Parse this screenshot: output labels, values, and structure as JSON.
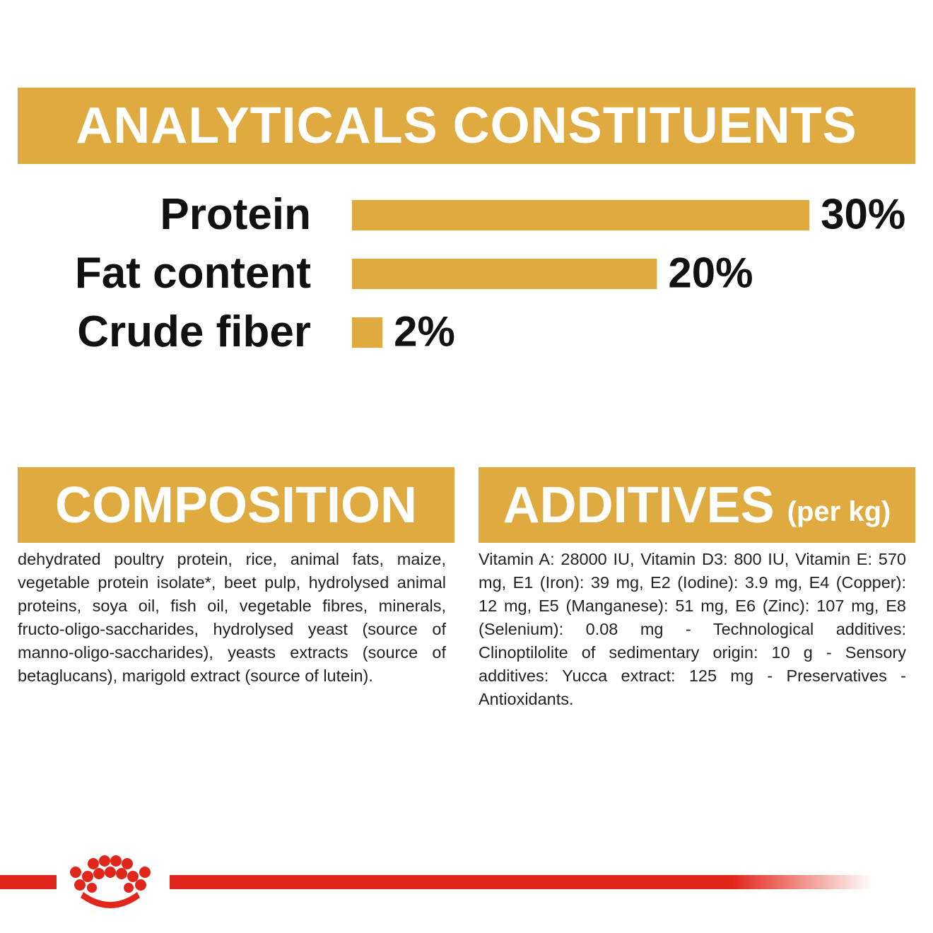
{
  "chart_data": {
    "type": "bar",
    "orientation": "horizontal",
    "title": "ANALYTICALS CONSTITUENTS",
    "categories": [
      "Protein",
      "Fat content",
      "Crude fiber"
    ],
    "values": [
      30,
      20,
      2
    ],
    "value_labels": [
      "30%",
      "20%",
      "2%"
    ],
    "color": "#dfab41"
  },
  "composition": {
    "title": "COMPOSITION",
    "text": "dehydrated poultry protein, rice, animal fats, maize, vegetable protein isolate*, beet pulp, hydrolysed animal proteins, soya oil, fish oil, vegetable fibres, minerals, fructo-oligo-saccharides, hydrolysed yeast (source of manno-oligo-saccharides), yeasts extracts (source of betaglucans), marigold extract (source of lutein)."
  },
  "additives": {
    "title": "ADDITIVES",
    "unit": "(per kg)",
    "text": "Vitamin A: 28000 IU, Vitamin D3: 800 IU, Vitamin E: 570 mg, E1 (Iron): 39 mg, E2 (Iodine): 3.9 mg, E4 (Copper): 12 mg, E5 (Manganese): 51 mg, E6 (Zinc): 107 mg, E8 (Selenium): 0.08 mg - Technological additives: Clinoptilolite of sedimentary origin: 10 g - Sensory additives: Yucca extract: 125 mg - Preservatives - Antioxidants."
  }
}
